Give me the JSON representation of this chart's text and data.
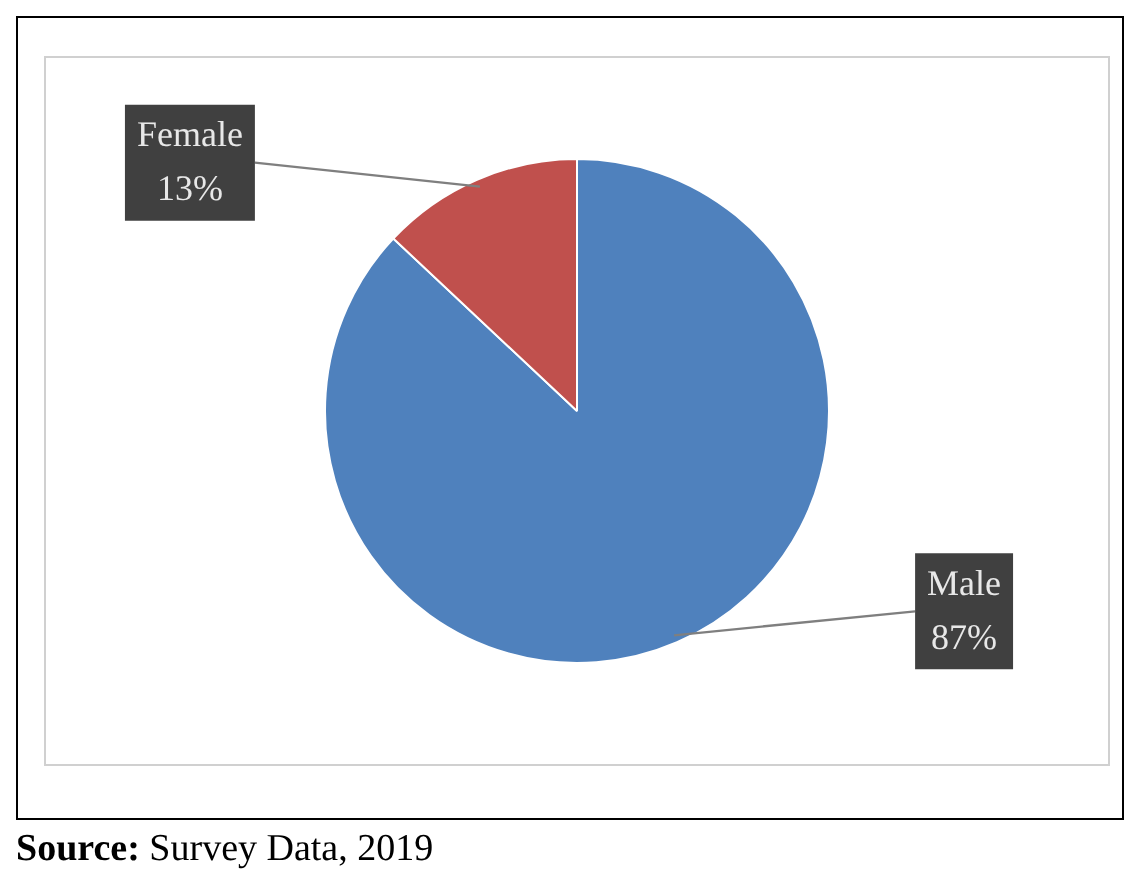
{
  "chart_data": {
    "type": "pie",
    "categories": [
      "Male",
      "Female"
    ],
    "values": [
      87,
      13
    ],
    "colors": [
      "#4f81bd",
      "#c0504d"
    ],
    "value_labels": [
      "87%",
      "13%"
    ],
    "legend": false,
    "annotations": [
      "Source: Survey Data, 2019"
    ]
  }
}
